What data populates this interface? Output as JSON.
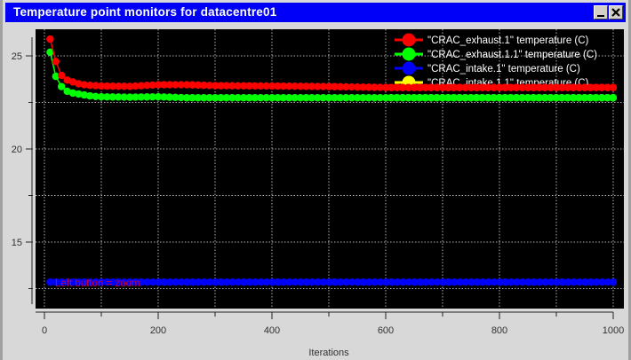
{
  "window": {
    "title": "Temperature point monitors for datacentre01",
    "buttons": {
      "minimize": "minimize",
      "close": "close"
    },
    "colors": {
      "titlebar": "#0000f8",
      "frame": "#d8d8d8",
      "plot_bg": "#000000",
      "grid": "#b0b0b0"
    }
  },
  "plot": {
    "hint": "Left button = zoom",
    "xlabel": "Iterations"
  },
  "chart_data": {
    "type": "line",
    "title": "Temperature point monitors for datacentre01",
    "xlabel": "Iterations",
    "ylabel": "",
    "xlim": [
      0,
      1000
    ],
    "ylim": [
      11.5,
      26.5
    ],
    "x_ticks": [
      0,
      200,
      400,
      600,
      800,
      1000
    ],
    "x_minor_ticks": [
      100,
      300,
      500,
      700,
      900
    ],
    "y_ticks": [
      15,
      20,
      25
    ],
    "y_minor_ticks": [
      12.5,
      17.5,
      22.5
    ],
    "grid": true,
    "legend_position": "upper right",
    "series": [
      {
        "name": "\"CRAC_exhaust.1\" temperature (C)",
        "color": "#ff0000",
        "x": [
          10,
          20,
          30,
          40,
          50,
          60,
          70,
          80,
          90,
          100,
          150,
          200,
          250,
          300,
          400,
          500,
          600,
          700,
          800,
          900,
          1000
        ],
        "values": [
          25.9,
          24.7,
          23.95,
          23.7,
          23.6,
          23.5,
          23.45,
          23.42,
          23.4,
          23.38,
          23.36,
          23.45,
          23.45,
          23.4,
          23.38,
          23.35,
          23.3,
          23.3,
          23.3,
          23.3,
          23.3
        ]
      },
      {
        "name": "\"CRAC_exhaust.1.1\" temperature (C)",
        "color": "#00ff00",
        "x": [
          10,
          20,
          30,
          40,
          50,
          60,
          70,
          80,
          90,
          100,
          150,
          200,
          250,
          300,
          400,
          500,
          600,
          700,
          800,
          900,
          1000
        ],
        "values": [
          25.2,
          23.9,
          23.35,
          23.1,
          23.0,
          22.95,
          22.9,
          22.85,
          22.82,
          22.8,
          22.78,
          22.8,
          22.75,
          22.75,
          22.75,
          22.75,
          22.75,
          22.75,
          22.75,
          22.75,
          22.75
        ]
      },
      {
        "name": "\"CRAC_intake.1\" temperature (C)",
        "color": "#0000ff",
        "x": [
          10,
          1000
        ],
        "values": [
          12.85,
          12.85
        ]
      },
      {
        "name": "\"CRAC_intake.1.1\" temperature (C)",
        "color": "#ffff00",
        "x": [],
        "values": []
      }
    ]
  }
}
